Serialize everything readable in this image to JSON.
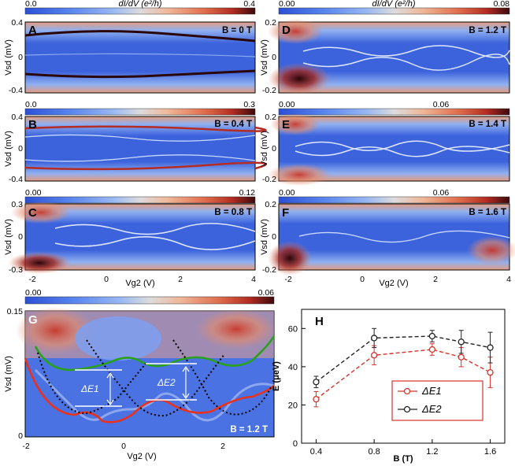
{
  "colorbar_unit": "dI/dV (e²/h)",
  "colors": {
    "cmap": [
      "#2b50d6",
      "#5a86ee",
      "#98b7f3",
      "#dcdcdc",
      "#f0b89a",
      "#df6d4c",
      "#b42c23",
      "#3b0a0c"
    ],
    "red_fit": "#e8321e",
    "green_fit": "#2aa01e",
    "dotted": "#000000",
    "marker_red": "#d8322a",
    "marker_black": "#222222"
  },
  "panels": [
    {
      "letter": "A",
      "field": "B = 0 T",
      "cbar_min": "0.0",
      "cbar_max": "0.4",
      "ytick_top": "0.4",
      "ytick_mid": "0",
      "ytick_bot": "-0.4"
    },
    {
      "letter": "B",
      "field": "B = 0.4 T",
      "cbar_min": "0.0",
      "cbar_max": "0.3",
      "ytick_top": "0.4",
      "ytick_mid": "0",
      "ytick_bot": "-0.4"
    },
    {
      "letter": "C",
      "field": "B = 0.8 T",
      "cbar_min": "0.00",
      "cbar_max": "0.12",
      "ytick_top": "0.3",
      "ytick_mid": "0",
      "ytick_bot": "-0.3"
    },
    {
      "letter": "D",
      "field": "B = 1.2 T",
      "cbar_min": "0.00",
      "cbar_max": "0.08",
      "ytick_top": "0.2",
      "ytick_mid": "0",
      "ytick_bot": "-0.2"
    },
    {
      "letter": "E",
      "field": "B = 1.4 T",
      "cbar_min": "0.00",
      "cbar_max": "0.06",
      "ytick_top": "0.2",
      "ytick_mid": "0",
      "ytick_bot": "-0.2"
    },
    {
      "letter": "F",
      "field": "B = 1.6 T",
      "cbar_min": "0.00",
      "cbar_max": "0.06",
      "ytick_top": "0.2",
      "ytick_mid": "0",
      "ytick_bot": "-0.2"
    }
  ],
  "map_axes": {
    "ylabel": "Vsd (mV)",
    "xlabel": "Vg2 (V)",
    "xticks": [
      "-2",
      "0",
      "2",
      "4"
    ]
  },
  "panel_g": {
    "letter": "G",
    "field": "B = 1.2 T",
    "cbar_min": "0.00",
    "cbar_max": "0.06",
    "yticks": [
      "0.15",
      "0"
    ],
    "xticks": [
      "-2",
      "0",
      "2"
    ],
    "ylabel": "Vsd (mV)",
    "xlabel": "Vg2 (V)",
    "annot1": "ΔE1",
    "annot2": "ΔE2"
  },
  "chart_data": {
    "type": "scatter",
    "title": "H",
    "xlabel": "B (T)",
    "ylabel": "E (μeV)",
    "xlim": [
      0.3,
      1.7
    ],
    "ylim": [
      0,
      70
    ],
    "xticks": [
      "0.4",
      "0.8",
      "1.2",
      "1.6"
    ],
    "yticks": [
      "0",
      "20",
      "40",
      "60"
    ],
    "legend_position": "lower-center",
    "series": [
      {
        "name": "ΔE1",
        "color": "#d8322a",
        "style": "dashed",
        "x": [
          0.4,
          0.8,
          1.2,
          1.4,
          1.6
        ],
        "y": [
          23,
          46,
          49,
          45,
          37
        ],
        "err": [
          4,
          5,
          3,
          5,
          8
        ]
      },
      {
        "name": "ΔE2",
        "color": "#222222",
        "style": "dashed",
        "x": [
          0.4,
          0.8,
          1.2,
          1.4,
          1.6
        ],
        "y": [
          32,
          55,
          56,
          53,
          50
        ],
        "err": [
          3,
          5,
          3,
          6,
          8
        ]
      }
    ]
  }
}
